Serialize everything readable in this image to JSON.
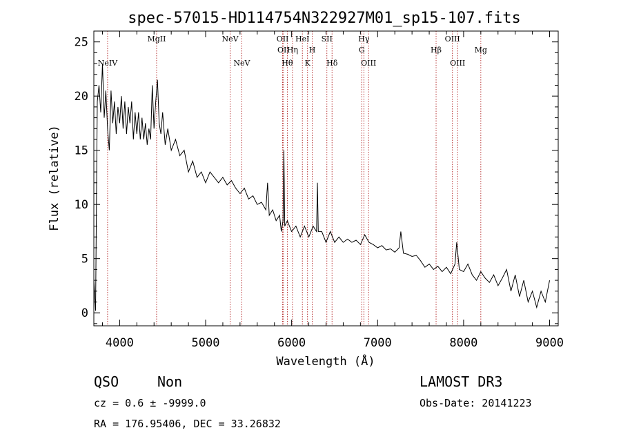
{
  "chart_data": {
    "type": "line",
    "title": "spec-57015-HD114754N322927M01_sp15-107.fits",
    "xlabel": "Wavelength (Å)",
    "ylabel": "Flux (relative)",
    "xlim": [
      3700,
      9100
    ],
    "ylim": [
      -1.2,
      26
    ],
    "xticks": [
      4000,
      5000,
      6000,
      7000,
      8000,
      9000
    ],
    "yticks": [
      0,
      5,
      10,
      15,
      20,
      25
    ],
    "grid": false,
    "series": [
      {
        "points": [
          [
            3700,
            3.0
          ],
          [
            3720,
            0.2
          ],
          [
            3740,
            19.5
          ],
          [
            3760,
            21.0
          ],
          [
            3780,
            18.5
          ],
          [
            3800,
            23.0
          ],
          [
            3820,
            18.0
          ],
          [
            3840,
            20.5
          ],
          [
            3860,
            17.0
          ],
          [
            3880,
            15.0
          ],
          [
            3900,
            20.5
          ],
          [
            3920,
            17.5
          ],
          [
            3940,
            19.5
          ],
          [
            3960,
            16.5
          ],
          [
            3980,
            19.0
          ],
          [
            4000,
            17.5
          ],
          [
            4020,
            20.0
          ],
          [
            4040,
            17.0
          ],
          [
            4060,
            19.5
          ],
          [
            4080,
            16.5
          ],
          [
            4100,
            19.0
          ],
          [
            4120,
            17.5
          ],
          [
            4140,
            19.5
          ],
          [
            4160,
            16.0
          ],
          [
            4180,
            18.5
          ],
          [
            4200,
            16.5
          ],
          [
            4220,
            18.5
          ],
          [
            4240,
            16.0
          ],
          [
            4260,
            18.0
          ],
          [
            4280,
            16.0
          ],
          [
            4300,
            17.5
          ],
          [
            4320,
            15.5
          ],
          [
            4340,
            17.0
          ],
          [
            4360,
            16.0
          ],
          [
            4380,
            21.0
          ],
          [
            4400,
            17.0
          ],
          [
            4420,
            19.5
          ],
          [
            4440,
            21.5
          ],
          [
            4460,
            17.5
          ],
          [
            4480,
            16.5
          ],
          [
            4500,
            18.5
          ],
          [
            4530,
            15.5
          ],
          [
            4560,
            17.0
          ],
          [
            4600,
            15.0
          ],
          [
            4650,
            16.0
          ],
          [
            4700,
            14.5
          ],
          [
            4750,
            15.0
          ],
          [
            4800,
            13.0
          ],
          [
            4850,
            14.0
          ],
          [
            4900,
            12.5
          ],
          [
            4950,
            13.0
          ],
          [
            5000,
            12.0
          ],
          [
            5050,
            13.0
          ],
          [
            5100,
            12.5
          ],
          [
            5150,
            12.0
          ],
          [
            5200,
            12.5
          ],
          [
            5250,
            11.8
          ],
          [
            5300,
            12.2
          ],
          [
            5350,
            11.5
          ],
          [
            5400,
            11.0
          ],
          [
            5450,
            11.5
          ],
          [
            5500,
            10.5
          ],
          [
            5550,
            10.8
          ],
          [
            5600,
            10.0
          ],
          [
            5650,
            10.2
          ],
          [
            5700,
            9.5
          ],
          [
            5720,
            12.0
          ],
          [
            5740,
            9.0
          ],
          [
            5780,
            9.5
          ],
          [
            5820,
            8.5
          ],
          [
            5860,
            9.0
          ],
          [
            5880,
            7.5
          ],
          [
            5900,
            8.5
          ],
          [
            5910,
            15.0
          ],
          [
            5920,
            8.0
          ],
          [
            5950,
            8.5
          ],
          [
            6000,
            7.5
          ],
          [
            6050,
            8.0
          ],
          [
            6100,
            7.0
          ],
          [
            6150,
            8.0
          ],
          [
            6200,
            7.0
          ],
          [
            6250,
            8.0
          ],
          [
            6290,
            7.5
          ],
          [
            6300,
            12.0
          ],
          [
            6310,
            7.5
          ],
          [
            6350,
            7.5
          ],
          [
            6400,
            6.5
          ],
          [
            6450,
            7.5
          ],
          [
            6500,
            6.5
          ],
          [
            6550,
            7.0
          ],
          [
            6600,
            6.5
          ],
          [
            6650,
            6.8
          ],
          [
            6700,
            6.5
          ],
          [
            6750,
            6.7
          ],
          [
            6800,
            6.3
          ],
          [
            6850,
            7.2
          ],
          [
            6900,
            6.5
          ],
          [
            6950,
            6.3
          ],
          [
            7000,
            6.0
          ],
          [
            7050,
            6.2
          ],
          [
            7100,
            5.8
          ],
          [
            7150,
            5.9
          ],
          [
            7200,
            5.6
          ],
          [
            7250,
            6.0
          ],
          [
            7270,
            7.5
          ],
          [
            7300,
            5.5
          ],
          [
            7350,
            5.4
          ],
          [
            7400,
            5.2
          ],
          [
            7450,
            5.3
          ],
          [
            7500,
            4.8
          ],
          [
            7550,
            4.2
          ],
          [
            7600,
            4.5
          ],
          [
            7650,
            4.0
          ],
          [
            7700,
            4.3
          ],
          [
            7750,
            3.8
          ],
          [
            7800,
            4.2
          ],
          [
            7850,
            3.6
          ],
          [
            7900,
            4.5
          ],
          [
            7920,
            6.5
          ],
          [
            7950,
            4.0
          ],
          [
            8000,
            3.8
          ],
          [
            8050,
            4.5
          ],
          [
            8100,
            3.5
          ],
          [
            8150,
            3.0
          ],
          [
            8200,
            3.8
          ],
          [
            8250,
            3.2
          ],
          [
            8300,
            2.8
          ],
          [
            8350,
            3.5
          ],
          [
            8400,
            2.5
          ],
          [
            8450,
            3.2
          ],
          [
            8500,
            4.0
          ],
          [
            8550,
            2.0
          ],
          [
            8600,
            3.5
          ],
          [
            8650,
            1.5
          ],
          [
            8700,
            3.0
          ],
          [
            8750,
            1.0
          ],
          [
            8800,
            2.0
          ],
          [
            8850,
            0.5
          ],
          [
            8900,
            2.0
          ],
          [
            8950,
            1.0
          ],
          [
            9000,
            3.0
          ]
        ]
      }
    ],
    "line_color": "#000000",
    "marker_color": "#b22222",
    "lines": [
      {
        "label": "NeIV",
        "x": 3860,
        "row": 1
      },
      {
        "label": "MgII",
        "x": 4430,
        "row": 0
      },
      {
        "label": "NeV",
        "x": 5285,
        "row": 0
      },
      {
        "label": "NeV",
        "x": 5420,
        "row": 1
      },
      {
        "label": "OII",
        "x": 5895,
        "row": 0
      },
      {
        "label": "OII",
        "x": 5905,
        "row": -1
      },
      {
        "label": "Hη",
        "x": 6010,
        "row": -1
      },
      {
        "label": "Hθ",
        "x": 5950,
        "row": 1
      },
      {
        "label": "HeI",
        "x": 6125,
        "row": 0
      },
      {
        "label": "K",
        "x": 6185,
        "row": 1
      },
      {
        "label": "H",
        "x": 6240,
        "row": -1
      },
      {
        "label": "SII",
        "x": 6410,
        "row": 0
      },
      {
        "label": "Hδ",
        "x": 6470,
        "row": 1
      },
      {
        "label": "Hγ",
        "x": 6840,
        "row": 0
      },
      {
        "label": "G",
        "x": 6815,
        "row": -1
      },
      {
        "label": "OIII",
        "x": 6895,
        "row": 1
      },
      {
        "label": "Hβ",
        "x": 7680,
        "row": -1
      },
      {
        "label": "OIII",
        "x": 7870,
        "row": 0
      },
      {
        "label": "OIII",
        "x": 7930,
        "row": 1
      },
      {
        "label": "Mg",
        "x": 8200,
        "row": -1
      }
    ]
  },
  "footer": {
    "class_label": "QSO",
    "subclass_label": "Non",
    "survey": "LAMOST DR3",
    "redshift": "cz = 0.6 ± -9999.0",
    "obs_date": "Obs-Date: 20141223",
    "coords": "RA = 176.95406, DEC =  33.26832"
  }
}
